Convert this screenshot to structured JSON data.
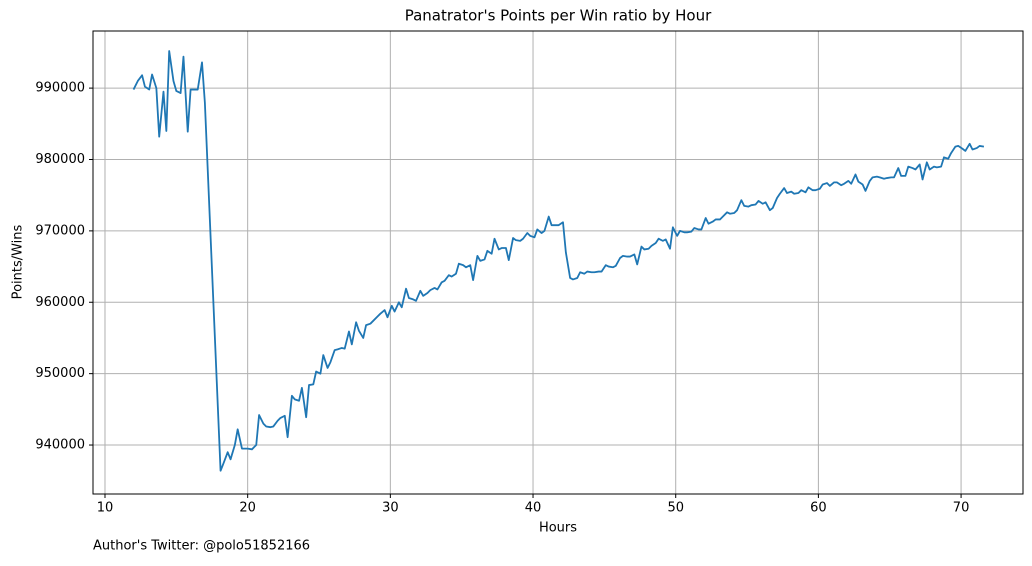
{
  "chart_data": {
    "type": "line",
    "title": "Panatrator's Points per Win ratio by Hour",
    "x_label": "Hours",
    "y_label": "Points/Wins",
    "footnote": "Author's Twitter: @polo51852166",
    "color": "#1f77b4",
    "grid": true,
    "xlim": [
      9.16,
      74.34
    ],
    "ylim": [
      933140,
      998000
    ],
    "xticks": [
      10,
      20,
      30,
      40,
      50,
      60,
      70
    ],
    "yticks": [
      940000,
      950000,
      960000,
      970000,
      980000,
      990000
    ],
    "x": [
      12.0,
      12.3,
      12.6,
      12.8,
      13.1,
      13.3,
      13.6,
      13.8,
      14.1,
      14.3,
      14.5,
      14.8,
      15.0,
      15.3,
      15.5,
      15.8,
      16.0,
      16.3,
      16.5,
      16.8,
      17.0,
      18.1,
      18.3,
      18.6,
      18.8,
      19.1,
      19.3,
      19.6,
      20.0,
      20.3,
      20.6,
      20.8,
      21.1,
      21.3,
      21.6,
      21.8,
      22.1,
      22.3,
      22.6,
      22.8,
      23.1,
      23.3,
      23.6,
      23.8,
      24.1,
      24.3,
      24.6,
      24.8,
      25.1,
      25.3,
      25.6,
      25.8,
      26.1,
      26.3,
      26.6,
      26.8,
      27.1,
      27.3,
      27.6,
      27.8,
      28.1,
      28.3,
      28.6,
      28.8,
      29.1,
      29.3,
      29.6,
      29.8,
      30.1,
      30.3,
      30.6,
      30.8,
      31.1,
      31.3,
      31.6,
      31.8,
      32.1,
      32.3,
      32.6,
      32.8,
      33.1,
      33.3,
      33.6,
      33.8,
      34.1,
      34.3,
      34.6,
      34.8,
      35.1,
      35.3,
      35.6,
      35.8,
      36.1,
      36.3,
      36.6,
      36.8,
      37.1,
      37.3,
      37.6,
      37.8,
      38.1,
      38.3,
      38.6,
      38.8,
      39.1,
      39.3,
      39.6,
      39.8,
      40.1,
      40.3,
      40.6,
      40.8,
      41.1,
      41.3,
      41.6,
      41.8,
      42.1,
      42.3,
      42.6,
      42.8,
      43.1,
      43.3,
      43.6,
      43.8,
      44.1,
      44.3,
      44.6,
      44.8,
      45.1,
      45.3,
      45.6,
      45.8,
      46.1,
      46.3,
      46.6,
      46.8,
      47.1,
      47.3,
      47.6,
      47.8,
      48.1,
      48.3,
      48.6,
      48.8,
      49.1,
      49.3,
      49.6,
      49.8,
      50.1,
      50.3,
      50.6,
      50.8,
      51.1,
      51.3,
      51.6,
      51.8,
      52.1,
      52.3,
      52.6,
      52.8,
      53.1,
      53.3,
      53.6,
      53.8,
      54.1,
      54.3,
      54.6,
      54.8,
      55.1,
      55.3,
      55.6,
      55.8,
      56.1,
      56.3,
      56.6,
      56.8,
      57.1,
      57.3,
      57.6,
      57.8,
      58.1,
      58.3,
      58.6,
      58.8,
      59.1,
      59.3,
      59.6,
      59.8,
      60.1,
      60.3,
      60.6,
      60.8,
      61.1,
      61.3,
      61.6,
      61.8,
      62.1,
      62.3,
      62.6,
      62.8,
      63.1,
      63.3,
      63.6,
      63.8,
      64.1,
      64.3,
      64.6,
      64.8,
      65.1,
      65.3,
      65.6,
      65.8,
      66.1,
      66.3,
      66.6,
      66.8,
      67.1,
      67.3,
      67.6,
      67.8,
      68.1,
      68.3,
      68.6,
      68.8,
      69.1,
      69.3,
      69.6,
      69.8,
      70.1,
      70.3,
      70.6,
      70.8,
      71.1,
      71.3,
      71.6
    ],
    "values": [
      989800,
      991000,
      991800,
      990200,
      989800,
      991900,
      990000,
      983200,
      989500,
      984000,
      995200,
      991000,
      989600,
      989300,
      994400,
      983900,
      989800,
      989800,
      989800,
      993600,
      988000,
      936400,
      937400,
      939000,
      938000,
      940000,
      942200,
      939500,
      939500,
      939400,
      940000,
      944200,
      943000,
      942600,
      942500,
      942600,
      943400,
      943800,
      944100,
      941100,
      946900,
      946400,
      946200,
      948000,
      943900,
      948400,
      948500,
      950300,
      950000,
      952600,
      950800,
      951600,
      953300,
      953400,
      953600,
      953500,
      955900,
      954100,
      957200,
      956000,
      955000,
      956800,
      957000,
      957400,
      958000,
      958400,
      958900,
      957900,
      959500,
      958700,
      960000,
      959300,
      961900,
      960600,
      960400,
      960200,
      961600,
      960900,
      961300,
      961700,
      962000,
      961800,
      962800,
      963000,
      963800,
      963600,
      964000,
      965400,
      965200,
      964900,
      965200,
      963100,
      966500,
      965800,
      966000,
      967200,
      966800,
      968900,
      967400,
      967600,
      967600,
      965900,
      969000,
      968700,
      968600,
      968900,
      969700,
      969300,
      969100,
      970200,
      969700,
      970000,
      972000,
      970800,
      970800,
      970800,
      971200,
      967000,
      963400,
      963200,
      963400,
      964200,
      964000,
      964300,
      964200,
      964200,
      964300,
      964300,
      965200,
      965000,
      964900,
      965100,
      966200,
      966500,
      966400,
      966400,
      966700,
      965300,
      967800,
      967400,
      967500,
      967900,
      968300,
      968900,
      968600,
      968800,
      967500,
      970500,
      969300,
      970000,
      969800,
      969800,
      969900,
      970400,
      970200,
      970200,
      971800,
      971000,
      971300,
      971600,
      971600,
      972000,
      972600,
      972400,
      972500,
      972900,
      974300,
      973500,
      973400,
      973600,
      973700,
      974200,
      973800,
      974000,
      972900,
      973200,
      974600,
      975200,
      976000,
      975300,
      975500,
      975200,
      975300,
      975700,
      975400,
      976100,
      975700,
      975700,
      975900,
      976500,
      976700,
      976300,
      976800,
      976800,
      976400,
      976600,
      977000,
      976600,
      977900,
      976900,
      976500,
      975600,
      977000,
      977500,
      977600,
      977500,
      977300,
      977400,
      977500,
      977500,
      978800,
      977700,
      977700,
      979000,
      978800,
      978600,
      979300,
      977200,
      979600,
      978600,
      979000,
      978900,
      979000,
      980300,
      980100,
      980900,
      981800,
      981900,
      981500,
      981200,
      982200,
      981400,
      981600,
      981900,
      981800
    ]
  }
}
